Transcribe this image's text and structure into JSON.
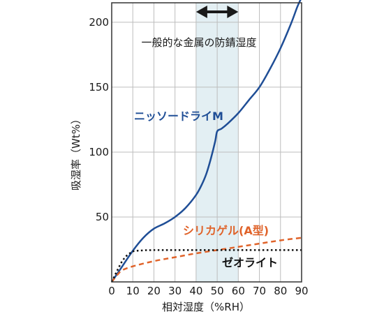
{
  "chart_data": {
    "type": "line",
    "title": "",
    "xlabel": "相対湿度（%RH）",
    "ylabel": "吸湿率（Wt%）",
    "xlim": [
      0,
      90
    ],
    "ylim": [
      0,
      215
    ],
    "x_ticks": [
      0,
      10,
      20,
      30,
      40,
      50,
      60,
      70,
      80,
      90
    ],
    "y_ticks": [
      50,
      100,
      150,
      200
    ],
    "grid": true,
    "band": {
      "from": 40,
      "to": 60,
      "label": "一般的な金属の防錆湿度",
      "color": "#e3eff3",
      "arrow_color": "#1a1a1a"
    },
    "series": [
      {
        "name": "ニッソードライM",
        "color": "#1f4e96",
        "style": "solid",
        "x": [
          0,
          5,
          10,
          15,
          20,
          25,
          30,
          35,
          40,
          43,
          45,
          47,
          49,
          50,
          52,
          55,
          60,
          65,
          70,
          75,
          80,
          85,
          88,
          90
        ],
        "y": [
          0,
          12,
          24,
          34,
          41,
          45,
          50,
          57,
          67,
          76,
          84,
          95,
          108,
          116,
          118,
          122,
          130,
          140,
          150,
          164,
          180,
          199,
          212,
          220
        ]
      },
      {
        "name": "シリカゲル(A型)",
        "color": "#e0632a",
        "style": "dashed",
        "x": [
          0,
          3,
          5,
          10,
          20,
          30,
          40,
          50,
          60,
          70,
          80,
          90
        ],
        "y": [
          0,
          6,
          9,
          12,
          16,
          19,
          22,
          24.5,
          27,
          29.5,
          32,
          34
        ]
      },
      {
        "name": "ゼオライト",
        "color": "#111111",
        "style": "dotted",
        "x": [
          0,
          3,
          5,
          7,
          9,
          10,
          12,
          15,
          20,
          40,
          60,
          90
        ],
        "y": [
          0,
          10,
          16,
          20,
          22.5,
          23.5,
          24,
          24.3,
          24.5,
          24.5,
          24.5,
          24.5
        ]
      }
    ]
  }
}
